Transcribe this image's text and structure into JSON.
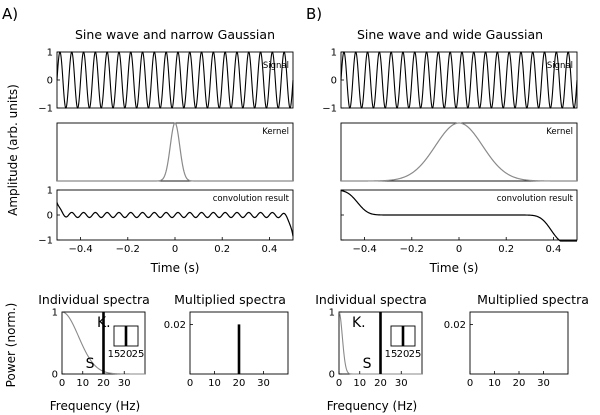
{
  "figure": {
    "panel_labels": [
      "A)",
      "B)"
    ],
    "column_titles": [
      "Sine wave and narrow Gaussian",
      "Sine wave and wide Gaussian"
    ],
    "time_axis_label": "Time (s)",
    "amplitude_axis_label": "Amplitude (arb. units)",
    "power_axis_label": "Power (norm.)",
    "frequency_axis_label": "Frequency (Hz)"
  },
  "chart_data": [
    {
      "id": "A-signal",
      "type": "line",
      "panel": "A",
      "row": "signal",
      "legend": "Signal",
      "function": "sin(2*pi*20*t)",
      "series": [
        {
          "x_range": [
            -0.5,
            0.5
          ],
          "frequency_hz": 20,
          "amplitude": 1
        }
      ],
      "xlim": [
        -0.5,
        0.5
      ],
      "ylim": [
        -1,
        1
      ],
      "yticks": [
        "1",
        "0",
        "-1"
      ],
      "grid": false
    },
    {
      "id": "A-kernel",
      "type": "line",
      "panel": "A",
      "row": "kernel",
      "legend": "Kernel",
      "function": "gaussian(mean=0, sd=0.02)",
      "series": [
        {
          "x_range": [
            -0.5,
            0.5
          ],
          "gaussian_sd_s": 0.02,
          "peak": 1
        }
      ],
      "xlim": [
        -0.5,
        0.5
      ],
      "ylim": [
        0,
        1
      ],
      "grid": false
    },
    {
      "id": "A-convolution",
      "type": "line",
      "panel": "A",
      "row": "convolution",
      "legend": "convolution result",
      "function": "0.1*sin(2*pi*20*t) with edge transients",
      "series": [
        {
          "x_range": [
            -0.5,
            0.5
          ],
          "amplitude": 0.1,
          "edge_values": [
            0.5,
            -0.85
          ]
        }
      ],
      "xlim": [
        -0.5,
        0.5
      ],
      "ylim": [
        -1,
        1
      ],
      "yticks": [
        "1",
        "0",
        "-1"
      ],
      "xticks": [
        "-0.4",
        "-0.2",
        "0",
        "0.2",
        "0.4"
      ],
      "grid": false
    },
    {
      "id": "B-signal",
      "type": "line",
      "panel": "B",
      "row": "signal",
      "legend": "Signal",
      "function": "sin(2*pi*20*t)",
      "series": [
        {
          "x_range": [
            -0.5,
            0.5
          ],
          "frequency_hz": 20,
          "amplitude": 1
        }
      ],
      "xlim": [
        -0.5,
        0.5
      ],
      "ylim": [
        -1,
        1
      ],
      "grid": false
    },
    {
      "id": "B-kernel",
      "type": "line",
      "panel": "B",
      "row": "kernel",
      "legend": "Kernel",
      "function": "gaussian(mean=0, sd=0.1)",
      "series": [
        {
          "x_range": [
            -0.5,
            0.5
          ],
          "gaussian_sd_s": 0.1,
          "peak": 1
        }
      ],
      "xlim": [
        -0.5,
        0.5
      ],
      "ylim": [
        0,
        1
      ],
      "grid": false
    },
    {
      "id": "B-convolution",
      "type": "line",
      "panel": "B",
      "row": "convolution",
      "legend": "convolution result",
      "function": "~0 with edge transients",
      "series": [
        {
          "x_range": [
            -0.5,
            0.5
          ],
          "edge_values": [
            1,
            -1.2
          ]
        }
      ],
      "xlim": [
        -0.5,
        0.5
      ],
      "ylim": [
        -1,
        1
      ],
      "xticks": [
        "-0.4",
        "-0.2",
        "0",
        "0.2",
        "0.4"
      ],
      "grid": false
    },
    {
      "id": "A-individual",
      "type": "line",
      "panel": "A",
      "row": "spectra",
      "title": "Individual spectra",
      "series": [
        {
          "name": "K.",
          "color": "#8a8a8a",
          "function": "exp(-(2*pi*f*0.02)^2/2)",
          "x_range": [
            0,
            40
          ]
        },
        {
          "name": "S",
          "color": "#000000",
          "type": "stem",
          "x": 20,
          "y": 1
        }
      ],
      "xlim": [
        0,
        40
      ],
      "ylim": [
        0,
        1
      ],
      "xticks": [
        "0",
        "10",
        "20",
        "30"
      ],
      "yticks": [
        "1",
        "0"
      ],
      "inset": {
        "xlim": [
          15,
          25
        ],
        "xticks": [
          "15",
          "20",
          "25"
        ],
        "stem_x": 20
      }
    },
    {
      "id": "A-multiplied",
      "type": "bar",
      "panel": "A",
      "row": "spectra",
      "title": "Multiplied spectra",
      "series": [
        {
          "x": 20,
          "y": 0.02
        }
      ],
      "xlim": [
        0,
        40
      ],
      "ylim": [
        0,
        0.025
      ],
      "xticks": [
        "0",
        "10",
        "20",
        "30"
      ],
      "yticks": [
        "0.02"
      ]
    },
    {
      "id": "B-individual",
      "type": "line",
      "panel": "B",
      "row": "spectra",
      "title": "Individual spectra",
      "series": [
        {
          "name": "K.",
          "color": "#8a8a8a",
          "function": "exp(-(2*pi*f*0.1)^2/2)",
          "x_range": [
            0,
            40
          ]
        },
        {
          "name": "S",
          "color": "#000000",
          "type": "stem",
          "x": 20,
          "y": 1
        }
      ],
      "xlim": [
        0,
        40
      ],
      "ylim": [
        0,
        1
      ],
      "xticks": [
        "0",
        "10",
        "20",
        "30"
      ],
      "yticks": [
        "1",
        "0"
      ],
      "inset": {
        "xlim": [
          15,
          25
        ],
        "xticks": [
          "15",
          "20",
          "25"
        ],
        "stem_x": 20
      }
    },
    {
      "id": "B-multiplied",
      "type": "bar",
      "panel": "B",
      "row": "spectra",
      "title": "Multiplied spectra",
      "series": [
        {
          "x": 20,
          "y": 0
        }
      ],
      "xlim": [
        0,
        40
      ],
      "ylim": [
        0,
        0.025
      ],
      "xticks": [
        "0",
        "10",
        "20",
        "30"
      ],
      "yticks": [
        "0.02"
      ]
    }
  ]
}
